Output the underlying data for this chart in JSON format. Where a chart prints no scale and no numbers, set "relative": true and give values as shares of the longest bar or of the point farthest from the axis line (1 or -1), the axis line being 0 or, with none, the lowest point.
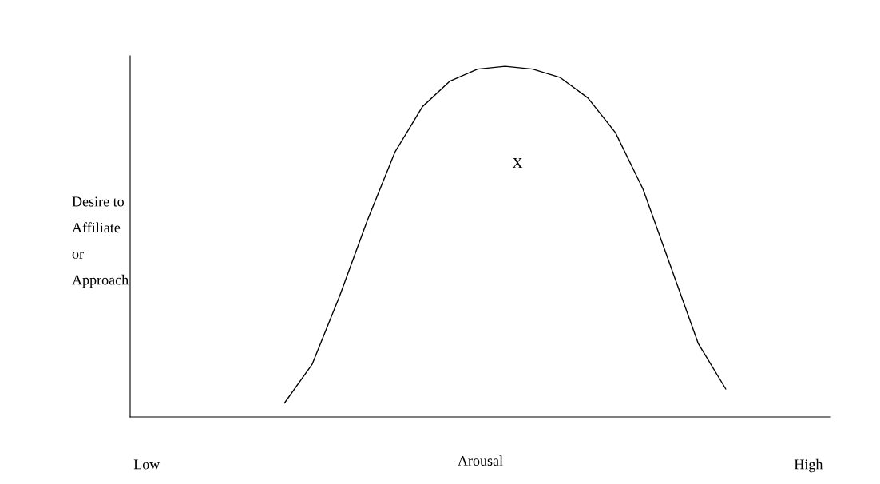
{
  "chart_data": {
    "type": "line",
    "relative": true,
    "xlabel": "Arousal",
    "ylabel": "Desire to\nAffiliate\nor\nApproach",
    "categories": [
      "Low",
      null,
      null,
      null,
      null,
      null,
      null,
      null,
      null,
      null,
      null,
      null,
      null,
      null,
      null,
      null,
      null,
      null,
      null,
      null,
      null,
      null,
      null,
      null,
      "High"
    ],
    "series": [
      {
        "color": "#000000",
        "values": [
          null,
          null,
          null,
          null,
          null,
          0.04,
          0.15,
          0.345,
          0.56,
          0.755,
          0.885,
          0.958,
          0.992,
          1.0,
          0.992,
          0.968,
          0.91,
          0.811,
          0.65,
          0.43,
          0.21,
          0.08,
          null,
          null,
          null
        ]
      }
    ],
    "annotations": [
      "X"
    ],
    "grid": false,
    "legend": false,
    "marker": "none",
    "line_style": "solid"
  }
}
